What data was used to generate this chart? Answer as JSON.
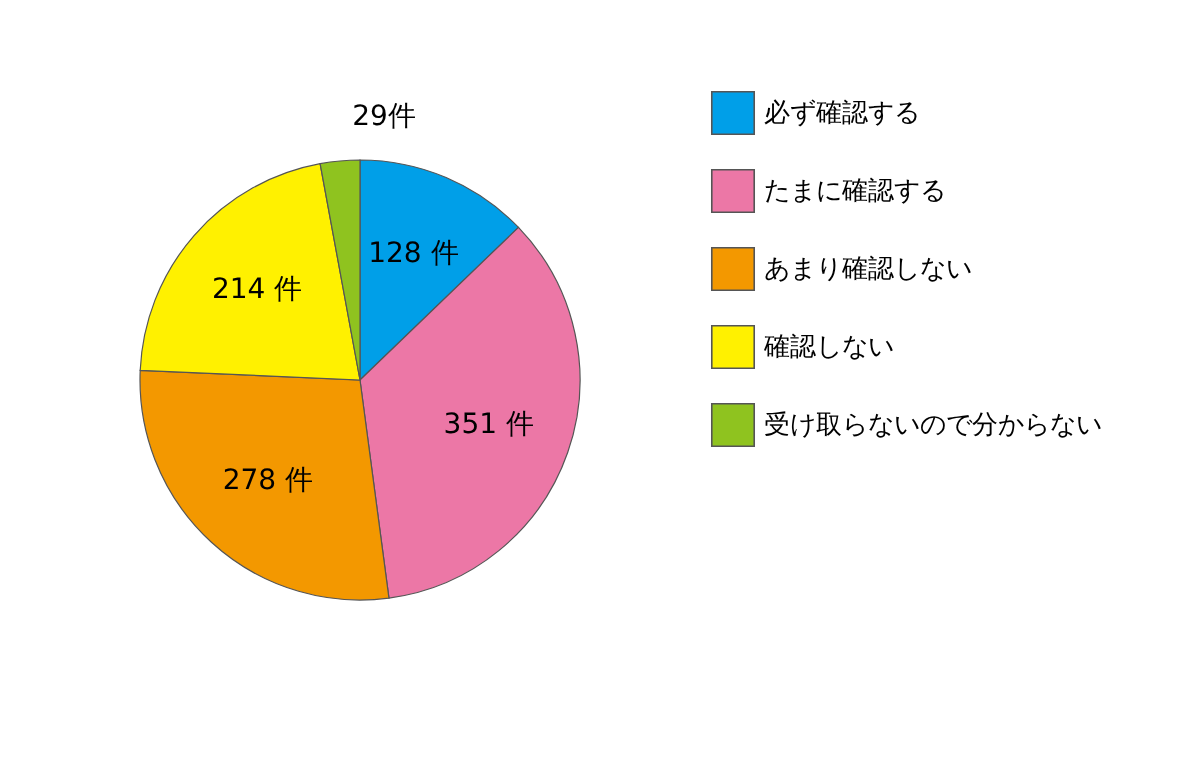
{
  "chart_data": {
    "type": "pie",
    "categories": [
      "必ず確認する",
      "たまに確認する",
      "あまり確認しない",
      "確認しない",
      "受け取らないので分からない"
    ],
    "values": [
      128,
      351,
      278,
      214,
      29
    ],
    "colors": [
      "#009fe8",
      "#ec77a6",
      "#f39800",
      "#fff100",
      "#8fc31f"
    ],
    "value_labels": [
      "128 件",
      "351 件",
      "278 件",
      "214 件",
      "29件"
    ],
    "legend": "right"
  }
}
